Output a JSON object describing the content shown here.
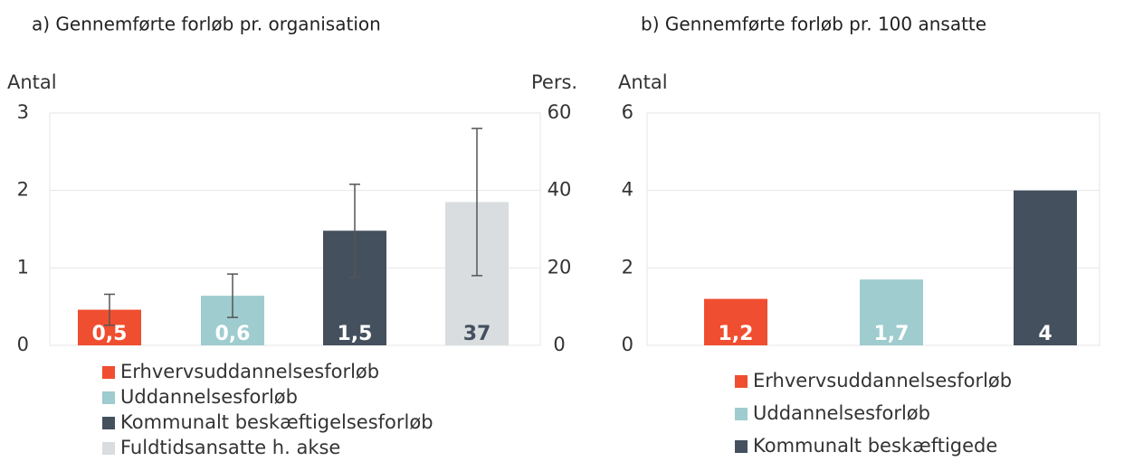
{
  "chart_data": [
    {
      "type": "bar",
      "title": "a) Gennemførte forløb pr. organisation",
      "ylabel": "Antal",
      "y2label": "Pers.",
      "ylim": [
        0,
        3
      ],
      "yticks": [
        0,
        1,
        2,
        3
      ],
      "y2lim": [
        0,
        60
      ],
      "y2ticks": [
        0,
        20,
        40,
        60
      ],
      "series": [
        {
          "name": "Erhvervsuddannelsesforløb",
          "color": "#f04e30",
          "values": [
            0.46
          ],
          "value_labels": [
            "0,5"
          ],
          "errors": [
            0.2
          ]
        },
        {
          "name": "Uddannelsesforløb",
          "color": "#9ecccf",
          "values": [
            0.64
          ],
          "value_labels": [
            "0,6"
          ],
          "errors": [
            0.28
          ]
        },
        {
          "name": "Kommunalt beskæftigelsesforløb",
          "color": "#44505e",
          "values": [
            1.48
          ],
          "value_labels": [
            "1,5"
          ],
          "errors": [
            0.6
          ]
        },
        {
          "name": "Fuldtidsansatte h. akse",
          "color": "#d9dde0",
          "values": [
            37
          ],
          "value_labels": [
            "37"
          ],
          "errors": [
            19
          ],
          "axis": "y2"
        }
      ]
    },
    {
      "type": "bar",
      "title": "b) Gennemførte forløb pr. 100 ansatte",
      "ylabel": "Antal",
      "ylim": [
        0,
        6
      ],
      "yticks": [
        0,
        2,
        4,
        6
      ],
      "series": [
        {
          "name": "Erhvervsuddannelsesforløb",
          "color": "#f04e30",
          "values": [
            1.2
          ],
          "value_labels": [
            "1,2"
          ]
        },
        {
          "name": "Uddannelsesforløb",
          "color": "#9ecccf",
          "values": [
            1.7
          ],
          "value_labels": [
            "1,7"
          ]
        },
        {
          "name": "Kommunalt beskæftigede",
          "color": "#44505e",
          "values": [
            4
          ],
          "value_labels": [
            "4"
          ]
        }
      ]
    }
  ]
}
